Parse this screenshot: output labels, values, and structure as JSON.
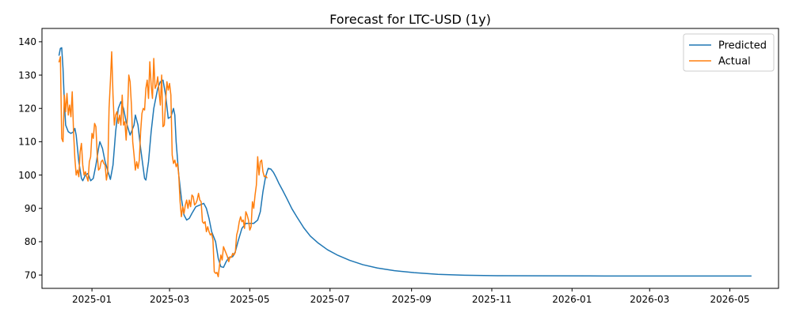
{
  "chart_data": {
    "type": "line",
    "title": "Forecast for LTC-USD (1y)",
    "xlabel": "",
    "ylabel": "",
    "x_type": "date",
    "xlim": [
      "2024-11-24",
      "2026-06-07"
    ],
    "ylim": [
      66,
      144
    ],
    "x_ticks": [
      "2025-01-01",
      "2025-03-01",
      "2025-05-01",
      "2025-07-01",
      "2025-09-01",
      "2025-11-01",
      "2026-01-01",
      "2026-03-01",
      "2026-05-01"
    ],
    "x_tick_labels": [
      "2025-01",
      "2025-03",
      "2025-05",
      "2025-07",
      "2025-09",
      "2025-11",
      "2026-01",
      "2026-03",
      "2026-05"
    ],
    "y_ticks": [
      70,
      80,
      90,
      100,
      110,
      120,
      130,
      140
    ],
    "y_tick_labels": [
      "70",
      "80",
      "90",
      "100",
      "110",
      "120",
      "130",
      "140"
    ],
    "grid": false,
    "legend_position": "top-right",
    "series": [
      {
        "name": "Predicted",
        "color": "#1f77b4",
        "points": [
          [
            "2024-12-07",
            136
          ],
          [
            "2024-12-08",
            138
          ],
          [
            "2024-12-09",
            138.2
          ],
          [
            "2024-12-10",
            132
          ],
          [
            "2024-12-11",
            122
          ],
          [
            "2024-12-12",
            115
          ],
          [
            "2024-12-14",
            113
          ],
          [
            "2024-12-16",
            112.5
          ],
          [
            "2024-12-18",
            113
          ],
          [
            "2024-12-19",
            114
          ],
          [
            "2024-12-20",
            112
          ],
          [
            "2024-12-22",
            104
          ],
          [
            "2024-12-24",
            99
          ],
          [
            "2024-12-25",
            98.3
          ],
          [
            "2024-12-27",
            100
          ],
          [
            "2024-12-29",
            100.5
          ],
          [
            "2024-12-31",
            98.3
          ],
          [
            "2025-01-02",
            99
          ],
          [
            "2025-01-04",
            103
          ],
          [
            "2025-01-06",
            108
          ],
          [
            "2025-01-07",
            110
          ],
          [
            "2025-01-09",
            108
          ],
          [
            "2025-01-11",
            104
          ],
          [
            "2025-01-14",
            100
          ],
          [
            "2025-01-15",
            98.7
          ],
          [
            "2025-01-17",
            103
          ],
          [
            "2025-01-19",
            113
          ],
          [
            "2025-01-21",
            120
          ],
          [
            "2025-01-23",
            122
          ],
          [
            "2025-01-25",
            120
          ],
          [
            "2025-01-27",
            116
          ],
          [
            "2025-01-30",
            112
          ],
          [
            "2025-02-02",
            115
          ],
          [
            "2025-02-03",
            118
          ],
          [
            "2025-02-05",
            115
          ],
          [
            "2025-02-07",
            108
          ],
          [
            "2025-02-09",
            102
          ],
          [
            "2025-02-10",
            99
          ],
          [
            "2025-02-11",
            98.5
          ],
          [
            "2025-02-13",
            104
          ],
          [
            "2025-02-15",
            113
          ],
          [
            "2025-02-17",
            120
          ],
          [
            "2025-02-20",
            126
          ],
          [
            "2025-02-22",
            128
          ],
          [
            "2025-02-24",
            128.5
          ],
          [
            "2025-02-26",
            124
          ],
          [
            "2025-02-28",
            117
          ],
          [
            "2025-03-02",
            117.5
          ],
          [
            "2025-03-04",
            120
          ],
          [
            "2025-03-05",
            118
          ],
          [
            "2025-03-06",
            110
          ],
          [
            "2025-03-08",
            100
          ],
          [
            "2025-03-10",
            93
          ],
          [
            "2025-03-12",
            88
          ],
          [
            "2025-03-14",
            86.5
          ],
          [
            "2025-03-16",
            87
          ],
          [
            "2025-03-18",
            88.5
          ],
          [
            "2025-03-21",
            90.5
          ],
          [
            "2025-03-24",
            91
          ],
          [
            "2025-03-27",
            91.5
          ],
          [
            "2025-03-29",
            90
          ],
          [
            "2025-03-31",
            87
          ],
          [
            "2025-04-02",
            83
          ],
          [
            "2025-04-05",
            80
          ],
          [
            "2025-04-07",
            75
          ],
          [
            "2025-04-09",
            72.5
          ],
          [
            "2025-04-11",
            72.3
          ],
          [
            "2025-04-13",
            74
          ],
          [
            "2025-04-15",
            75.2
          ],
          [
            "2025-04-18",
            75.5
          ],
          [
            "2025-04-20",
            77
          ],
          [
            "2025-04-22",
            80
          ],
          [
            "2025-04-25",
            84
          ],
          [
            "2025-04-28",
            85.5
          ],
          [
            "2025-05-01",
            85.5
          ],
          [
            "2025-05-04",
            85.5
          ],
          [
            "2025-05-07",
            86.5
          ],
          [
            "2025-05-09",
            89
          ],
          [
            "2025-05-11",
            95
          ],
          [
            "2025-05-13",
            99.5
          ],
          [
            "2025-05-15",
            102
          ],
          [
            "2025-05-17",
            101.8
          ],
          [
            "2025-05-19",
            100.8
          ],
          [
            "2025-05-21",
            99.3
          ],
          [
            "2025-05-23",
            97.6
          ],
          [
            "2025-05-26",
            95.4
          ],
          [
            "2025-05-29",
            93.1
          ],
          [
            "2025-06-02",
            89.9
          ],
          [
            "2025-06-06",
            87.3
          ],
          [
            "2025-06-11",
            84.2
          ],
          [
            "2025-06-16",
            81.7
          ],
          [
            "2025-06-22",
            79.6
          ],
          [
            "2025-06-29",
            77.6
          ],
          [
            "2025-07-07",
            75.9
          ],
          [
            "2025-07-16",
            74.4
          ],
          [
            "2025-07-26",
            73.1
          ],
          [
            "2025-08-06",
            72.1
          ],
          [
            "2025-08-19",
            71.3
          ],
          [
            "2025-09-03",
            70.7
          ],
          [
            "2025-09-21",
            70.2
          ],
          [
            "2025-10-11",
            69.95
          ],
          [
            "2025-11-05",
            69.8
          ],
          [
            "2025-12-05",
            69.75
          ],
          [
            "2026-01-14",
            69.72
          ],
          [
            "2026-03-01",
            69.71
          ],
          [
            "2026-05-17",
            69.7
          ]
        ]
      },
      {
        "name": "Actual",
        "color": "#ff7f0e",
        "points": [
          [
            "2024-12-07",
            134
          ],
          [
            "2024-12-08",
            135.5
          ],
          [
            "2024-12-09",
            111
          ],
          [
            "2024-12-10",
            110
          ],
          [
            "2024-12-11",
            124
          ],
          [
            "2024-12-12",
            119
          ],
          [
            "2024-12-13",
            124.5
          ],
          [
            "2024-12-14",
            118
          ],
          [
            "2024-12-15",
            121
          ],
          [
            "2024-12-16",
            117.5
          ],
          [
            "2024-12-17",
            125
          ],
          [
            "2024-12-18",
            113
          ],
          [
            "2024-12-19",
            105
          ],
          [
            "2024-12-20",
            100
          ],
          [
            "2024-12-21",
            101.5
          ],
          [
            "2024-12-22",
            99.5
          ],
          [
            "2024-12-23",
            107
          ],
          [
            "2024-12-24",
            109.5
          ],
          [
            "2024-12-25",
            103
          ],
          [
            "2024-12-26",
            100
          ],
          [
            "2024-12-27",
            101
          ],
          [
            "2024-12-28",
            99.5
          ],
          [
            "2024-12-29",
            98.2
          ],
          [
            "2024-12-30",
            104
          ],
          [
            "2024-12-31",
            105.5
          ],
          [
            "2025-01-01",
            112.5
          ],
          [
            "2025-01-02",
            111
          ],
          [
            "2025-01-03",
            115.5
          ],
          [
            "2025-01-04",
            114.5
          ],
          [
            "2025-01-05",
            106
          ],
          [
            "2025-01-06",
            101.5
          ],
          [
            "2025-01-07",
            102
          ],
          [
            "2025-01-08",
            104
          ],
          [
            "2025-01-09",
            104.5
          ],
          [
            "2025-01-10",
            103.5
          ],
          [
            "2025-01-11",
            103
          ],
          [
            "2025-01-12",
            98.5
          ],
          [
            "2025-01-13",
            101
          ],
          [
            "2025-01-14",
            120
          ],
          [
            "2025-01-15",
            128
          ],
          [
            "2025-01-16",
            137
          ],
          [
            "2025-01-17",
            124
          ],
          [
            "2025-01-18",
            115
          ],
          [
            "2025-01-19",
            118
          ],
          [
            "2025-01-20",
            119
          ],
          [
            "2025-01-21",
            115.5
          ],
          [
            "2025-01-22",
            118
          ],
          [
            "2025-01-23",
            115
          ],
          [
            "2025-01-24",
            124
          ],
          [
            "2025-01-25",
            115
          ],
          [
            "2025-01-26",
            116
          ],
          [
            "2025-01-27",
            110.5
          ],
          [
            "2025-01-28",
            118
          ],
          [
            "2025-01-29",
            130
          ],
          [
            "2025-01-30",
            128
          ],
          [
            "2025-01-31",
            121
          ],
          [
            "2025-02-01",
            110
          ],
          [
            "2025-02-02",
            106
          ],
          [
            "2025-02-03",
            101.5
          ],
          [
            "2025-02-04",
            104
          ],
          [
            "2025-02-05",
            102
          ],
          [
            "2025-02-06",
            104.5
          ],
          [
            "2025-02-07",
            113
          ],
          [
            "2025-02-08",
            118.5
          ],
          [
            "2025-02-09",
            120
          ],
          [
            "2025-02-10",
            119.5
          ],
          [
            "2025-02-11",
            126
          ],
          [
            "2025-02-12",
            128.5
          ],
          [
            "2025-02-13",
            123
          ],
          [
            "2025-02-14",
            134
          ],
          [
            "2025-02-15",
            127
          ],
          [
            "2025-02-16",
            123
          ],
          [
            "2025-02-17",
            135
          ],
          [
            "2025-02-18",
            126
          ],
          [
            "2025-02-19",
            127
          ],
          [
            "2025-02-20",
            129.5
          ],
          [
            "2025-02-21",
            125
          ],
          [
            "2025-02-22",
            121
          ],
          [
            "2025-02-23",
            130
          ],
          [
            "2025-02-24",
            114.5
          ],
          [
            "2025-02-25",
            115
          ],
          [
            "2025-02-26",
            122
          ],
          [
            "2025-02-27",
            128
          ],
          [
            "2025-02-28",
            125.5
          ],
          [
            "2025-03-01",
            127.5
          ],
          [
            "2025-03-02",
            124
          ],
          [
            "2025-03-03",
            106
          ],
          [
            "2025-03-04",
            103.5
          ],
          [
            "2025-03-05",
            104.5
          ],
          [
            "2025-03-06",
            102.5
          ],
          [
            "2025-03-07",
            103.5
          ],
          [
            "2025-03-08",
            100
          ],
          [
            "2025-03-09",
            92
          ],
          [
            "2025-03-10",
            87.5
          ],
          [
            "2025-03-11",
            90.5
          ],
          [
            "2025-03-12",
            88.5
          ],
          [
            "2025-03-13",
            91
          ],
          [
            "2025-03-14",
            92.5
          ],
          [
            "2025-03-15",
            90
          ],
          [
            "2025-03-16",
            92.5
          ],
          [
            "2025-03-17",
            90.5
          ],
          [
            "2025-03-18",
            94
          ],
          [
            "2025-03-19",
            93.5
          ],
          [
            "2025-03-20",
            91
          ],
          [
            "2025-03-21",
            91.5
          ],
          [
            "2025-03-22",
            92.5
          ],
          [
            "2025-03-23",
            94.5
          ],
          [
            "2025-03-24",
            92.5
          ],
          [
            "2025-03-25",
            92
          ],
          [
            "2025-03-26",
            86
          ],
          [
            "2025-03-27",
            85.5
          ],
          [
            "2025-03-28",
            86
          ],
          [
            "2025-03-29",
            83
          ],
          [
            "2025-03-30",
            84.5
          ],
          [
            "2025-03-31",
            83
          ],
          [
            "2025-04-01",
            82
          ],
          [
            "2025-04-02",
            82.5
          ],
          [
            "2025-04-03",
            80.5
          ],
          [
            "2025-04-04",
            71
          ],
          [
            "2025-04-05",
            70.5
          ],
          [
            "2025-04-06",
            70.8
          ],
          [
            "2025-04-07",
            69.5
          ],
          [
            "2025-04-08",
            73
          ],
          [
            "2025-04-09",
            76
          ],
          [
            "2025-04-10",
            74.5
          ],
          [
            "2025-04-11",
            78.5
          ],
          [
            "2025-04-12",
            77.5
          ],
          [
            "2025-04-13",
            76.5
          ],
          [
            "2025-04-14",
            75.5
          ],
          [
            "2025-04-15",
            74
          ],
          [
            "2025-04-16",
            75.5
          ],
          [
            "2025-04-17",
            75.3
          ],
          [
            "2025-04-18",
            76.5
          ],
          [
            "2025-04-19",
            76
          ],
          [
            "2025-04-20",
            76.8
          ],
          [
            "2025-04-21",
            82
          ],
          [
            "2025-04-22",
            83.5
          ],
          [
            "2025-04-23",
            86
          ],
          [
            "2025-04-24",
            87.5
          ],
          [
            "2025-04-25",
            86
          ],
          [
            "2025-04-26",
            86.5
          ],
          [
            "2025-04-27",
            84
          ],
          [
            "2025-04-28",
            89
          ],
          [
            "2025-04-29",
            88
          ],
          [
            "2025-04-30",
            86.5
          ],
          [
            "2025-05-01",
            83.5
          ],
          [
            "2025-05-02",
            84.5
          ],
          [
            "2025-05-03",
            92
          ],
          [
            "2025-05-04",
            90
          ],
          [
            "2025-05-05",
            94
          ],
          [
            "2025-05-06",
            97
          ],
          [
            "2025-05-07",
            105.5
          ],
          [
            "2025-05-08",
            100
          ],
          [
            "2025-05-09",
            104
          ],
          [
            "2025-05-10",
            104.5
          ],
          [
            "2025-05-11",
            101
          ],
          [
            "2025-05-12",
            99.5
          ],
          [
            "2025-05-13",
            99.8
          ],
          [
            "2025-05-14",
            99.2
          ]
        ]
      }
    ]
  }
}
